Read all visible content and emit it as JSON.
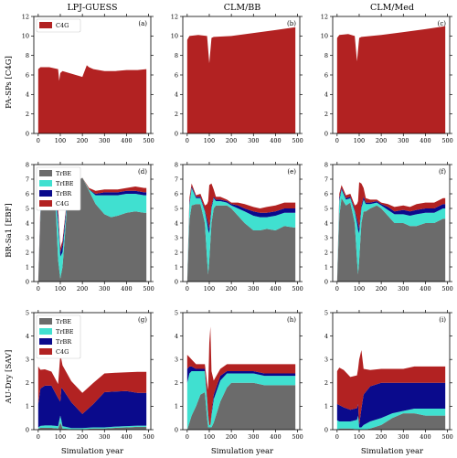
{
  "colors": {
    "TrBE": "#6b6b6b",
    "TrIBE": "#40e0d0",
    "TrBR": "#0a0a8c",
    "C4G": "#b22222"
  },
  "columns": [
    "LPJ-GUESS",
    "CLM/BB",
    "CLM/Med"
  ],
  "rows": [
    "PA-SPs [C4G]",
    "BR-Sa1 [EBF]",
    "AU-Dry [SAV]"
  ],
  "xlabel": "Simulation year",
  "chart_data": [
    {
      "type": "area",
      "panel": "(a)",
      "legend": [
        "C4G"
      ],
      "x": [
        0,
        10,
        50,
        90,
        95,
        100,
        110,
        200,
        220,
        230,
        250,
        300,
        350,
        400,
        450,
        490
      ],
      "series": [
        {
          "name": "C4G",
          "values": [
            6.6,
            6.8,
            6.8,
            6.6,
            5.4,
            6.2,
            6.4,
            5.8,
            7.0,
            6.8,
            6.6,
            6.4,
            6.4,
            6.5,
            6.5,
            6.6
          ]
        }
      ],
      "xlim": [
        -20,
        510
      ],
      "ylim": [
        0,
        12
      ],
      "xticks": [
        0,
        100,
        200,
        300,
        400,
        500
      ],
      "yticks": [
        0,
        2,
        4,
        6,
        8,
        10,
        12
      ]
    },
    {
      "type": "area",
      "panel": "(b)",
      "legend": [],
      "x": [
        0,
        10,
        50,
        90,
        100,
        110,
        120,
        200,
        300,
        400,
        490
      ],
      "series": [
        {
          "name": "C4G",
          "values": [
            9.6,
            10.0,
            10.1,
            10.0,
            7.2,
            9.8,
            9.9,
            10.0,
            10.3,
            10.6,
            10.9
          ]
        }
      ],
      "xlim": [
        -20,
        510
      ],
      "ylim": [
        0,
        12
      ],
      "xticks": [
        0,
        100,
        200,
        300,
        400,
        500
      ],
      "yticks": [
        0,
        2,
        4,
        6,
        8,
        10,
        12
      ]
    },
    {
      "type": "area",
      "panel": "(c)",
      "legend": [],
      "x": [
        0,
        10,
        50,
        80,
        90,
        100,
        110,
        200,
        300,
        400,
        490
      ],
      "series": [
        {
          "name": "C4G",
          "values": [
            9.8,
            10.1,
            10.2,
            10.0,
            7.4,
            9.8,
            9.9,
            10.1,
            10.4,
            10.7,
            11.0
          ]
        }
      ],
      "xlim": [
        -20,
        510
      ],
      "ylim": [
        0,
        12
      ],
      "xticks": [
        0,
        100,
        200,
        300,
        400,
        500
      ],
      "yticks": [
        0,
        2,
        4,
        6,
        8,
        10,
        12
      ]
    },
    {
      "type": "area",
      "panel": "(d)",
      "legend": [
        "TrBE",
        "TrIBE",
        "TrBR",
        "C4G"
      ],
      "x": [
        0,
        10,
        20,
        40,
        60,
        80,
        90,
        100,
        110,
        130,
        150,
        180,
        200,
        230,
        260,
        300,
        330,
        360,
        400,
        440,
        480,
        490
      ],
      "series": [
        {
          "name": "TrBE",
          "values": [
            0,
            4.5,
            6.2,
            6.4,
            6.1,
            4.8,
            1.5,
            0.2,
            1.0,
            5.0,
            6.5,
            6.9,
            7.1,
            6.2,
            5.3,
            4.6,
            4.4,
            4.5,
            4.7,
            4.8,
            4.7,
            4.7
          ]
        },
        {
          "name": "TrIBE",
          "values": [
            0,
            0.2,
            0.2,
            0.1,
            0.3,
            0.8,
            2.5,
            1.5,
            1.0,
            0.3,
            0.1,
            0,
            0,
            0.1,
            0.6,
            1.3,
            1.5,
            1.4,
            1.3,
            1.2,
            1.2,
            1.2
          ]
        },
        {
          "name": "TrBR",
          "values": [
            0,
            0.2,
            0.2,
            0.1,
            0.2,
            0.3,
            0.5,
            0.3,
            0.5,
            0.2,
            0.1,
            0,
            0,
            0,
            0.1,
            0.2,
            0.2,
            0.2,
            0.2,
            0.2,
            0.2,
            0.2
          ]
        },
        {
          "name": "C4G",
          "values": [
            0,
            0.3,
            0.1,
            0.1,
            0.2,
            0.3,
            0.5,
            0.3,
            0.3,
            0.1,
            0.1,
            0,
            0,
            0.1,
            0.2,
            0.2,
            0.2,
            0.2,
            0.2,
            0.3,
            0.3,
            0.3
          ]
        }
      ],
      "xlim": [
        -20,
        510
      ],
      "ylim": [
        0,
        8
      ],
      "xticks": [
        0,
        100,
        200,
        300,
        400,
        500
      ],
      "yticks": [
        0,
        1,
        2,
        3,
        4,
        5,
        6,
        7,
        8
      ]
    },
    {
      "type": "area",
      "panel": "(e)",
      "legend": [],
      "x": [
        0,
        10,
        20,
        40,
        60,
        80,
        90,
        95,
        100,
        110,
        120,
        130,
        150,
        180,
        200,
        230,
        260,
        300,
        330,
        360,
        400,
        440,
        480,
        490
      ],
      "series": [
        {
          "name": "TrBE",
          "values": [
            0,
            4.2,
            5.2,
            5.3,
            5.3,
            4.0,
            1.5,
            0.5,
            1.5,
            4.0,
            5.0,
            5.2,
            5.2,
            5.2,
            5.0,
            4.5,
            4.0,
            3.5,
            3.5,
            3.6,
            3.5,
            3.8,
            3.7,
            3.7
          ]
        },
        {
          "name": "TrIBE",
          "values": [
            0,
            1.0,
            1.2,
            0.4,
            0.4,
            0.8,
            2.5,
            3.0,
            1.8,
            1.0,
            0.7,
            0.3,
            0.3,
            0.2,
            0.2,
            0.5,
            0.8,
            1.0,
            0.9,
            0.8,
            1.0,
            0.9,
            1.0,
            1.0
          ]
        },
        {
          "name": "TrBR",
          "values": [
            0,
            0.2,
            0.1,
            0.1,
            0.1,
            0.1,
            0.3,
            0.5,
            0.3,
            0.2,
            0.1,
            0.1,
            0.1,
            0.1,
            0.1,
            0.2,
            0.2,
            0.3,
            0.3,
            0.3,
            0.3,
            0.3,
            0.3,
            0.3
          ]
        },
        {
          "name": "C4G",
          "values": [
            0,
            0.3,
            0.2,
            0.1,
            0.2,
            0.3,
            1.0,
            1.5,
            3.0,
            1.5,
            0.5,
            0.2,
            0.2,
            0.1,
            0.1,
            0.2,
            0.3,
            0.3,
            0.3,
            0.4,
            0.4,
            0.4,
            0.4,
            0.4
          ]
        }
      ],
      "xlim": [
        -20,
        510
      ],
      "ylim": [
        0,
        8
      ],
      "xticks": [
        0,
        100,
        200,
        300,
        400,
        500
      ],
      "yticks": [
        0,
        1,
        2,
        3,
        4,
        5,
        6,
        7,
        8
      ]
    },
    {
      "type": "area",
      "panel": "(f)",
      "legend": [],
      "x": [
        0,
        10,
        20,
        40,
        60,
        80,
        90,
        95,
        100,
        110,
        120,
        130,
        150,
        180,
        200,
        230,
        260,
        300,
        330,
        360,
        400,
        440,
        480,
        490
      ],
      "series": [
        {
          "name": "TrBE",
          "values": [
            0,
            4.5,
            5.7,
            5.2,
            5.4,
            4.0,
            1.5,
            0.5,
            1.5,
            4.0,
            4.8,
            4.8,
            5.0,
            5.2,
            5.0,
            4.5,
            4.0,
            4.0,
            3.8,
            3.8,
            4.0,
            4.0,
            4.3,
            4.3
          ]
        },
        {
          "name": "TrIBE",
          "values": [
            0,
            1.0,
            0.6,
            0.4,
            0.3,
            0.8,
            2.5,
            3.0,
            1.8,
            1.0,
            0.8,
            0.5,
            0.3,
            0.2,
            0.2,
            0.4,
            0.6,
            0.6,
            0.7,
            0.8,
            0.7,
            0.7,
            0.7,
            0.7
          ]
        },
        {
          "name": "TrBR",
          "values": [
            0,
            0.2,
            0.1,
            0.1,
            0.1,
            0.1,
            0.3,
            0.5,
            0.3,
            0.2,
            0.2,
            0.1,
            0.1,
            0.1,
            0.1,
            0.2,
            0.2,
            0.3,
            0.3,
            0.3,
            0.3,
            0.3,
            0.3,
            0.3
          ]
        },
        {
          "name": "C4G",
          "values": [
            0,
            0.3,
            0.2,
            0.2,
            0.2,
            0.3,
            1.0,
            1.5,
            3.2,
            1.5,
            0.6,
            0.3,
            0.2,
            0.1,
            0.1,
            0.2,
            0.3,
            0.3,
            0.3,
            0.4,
            0.4,
            0.4,
            0.4,
            0.4
          ]
        }
      ],
      "xlim": [
        -20,
        510
      ],
      "ylim": [
        0,
        8
      ],
      "xticks": [
        0,
        100,
        200,
        300,
        400,
        500
      ],
      "yticks": [
        0,
        1,
        2,
        3,
        4,
        5,
        6,
        7,
        8
      ]
    },
    {
      "type": "area",
      "panel": "(g)",
      "legend": [
        "TrBE",
        "TrIBE",
        "TrBR",
        "C4G"
      ],
      "x": [
        0,
        10,
        30,
        60,
        90,
        100,
        105,
        110,
        150,
        200,
        250,
        300,
        350,
        400,
        450,
        490
      ],
      "series": [
        {
          "name": "TrBE",
          "values": [
            0.05,
            0.08,
            0.08,
            0.08,
            0.05,
            0.3,
            0.2,
            0.05,
            0.02,
            0.02,
            0.05,
            0.05,
            0.08,
            0.1,
            0.12,
            0.12
          ]
        },
        {
          "name": "TrIBE",
          "values": [
            0.05,
            0.08,
            0.1,
            0.1,
            0.1,
            0.3,
            0.2,
            0.1,
            0.05,
            0.05,
            0.05,
            0.05,
            0.05,
            0.05,
            0.05,
            0.05
          ]
        },
        {
          "name": "TrBR",
          "values": [
            1.0,
            1.6,
            1.7,
            1.7,
            1.2,
            0.6,
            1.4,
            1.6,
            1.1,
            0.6,
            1.0,
            1.5,
            1.5,
            1.5,
            1.4,
            1.4
          ]
        },
        {
          "name": "C4G",
          "values": [
            1.6,
            0.8,
            0.7,
            0.6,
            0.6,
            2.0,
            1.2,
            1.0,
            0.9,
            0.9,
            0.9,
            0.8,
            0.8,
            0.8,
            0.9,
            0.9
          ]
        }
      ],
      "xlim": [
        -20,
        510
      ],
      "ylim": [
        0,
        5
      ],
      "xticks": [
        0,
        100,
        200,
        300,
        400,
        500
      ],
      "yticks": [
        0,
        1,
        2,
        3,
        4,
        5
      ]
    },
    {
      "type": "area",
      "panel": "(h)",
      "legend": [],
      "x": [
        0,
        10,
        20,
        40,
        60,
        80,
        90,
        95,
        100,
        105,
        110,
        120,
        150,
        180,
        200,
        230,
        260,
        300,
        350,
        400,
        450,
        490
      ],
      "series": [
        {
          "name": "TrBE",
          "values": [
            0,
            0.3,
            0.6,
            1.0,
            1.5,
            1.6,
            0.5,
            0.1,
            0.1,
            0.1,
            0.1,
            0.3,
            1.2,
            1.8,
            2.0,
            2.0,
            2.0,
            2.0,
            1.9,
            1.9,
            1.9,
            1.9
          ]
        },
        {
          "name": "TrIBE",
          "values": [
            2.0,
            2.1,
            1.9,
            1.5,
            1.0,
            0.9,
            0.8,
            0.5,
            0.1,
            0.1,
            0.5,
            1.0,
            0.9,
            0.6,
            0.4,
            0.4,
            0.4,
            0.4,
            0.4,
            0.4,
            0.4,
            0.4
          ]
        },
        {
          "name": "TrBR",
          "values": [
            0.6,
            0.3,
            0.2,
            0.1,
            0.1,
            0.1,
            0.1,
            0.1,
            0,
            0,
            0.1,
            0.2,
            0.2,
            0.1,
            0.1,
            0.1,
            0.1,
            0.1,
            0.1,
            0.1,
            0.1,
            0.1
          ]
        },
        {
          "name": "C4G",
          "values": [
            0.6,
            0.4,
            0.3,
            0.2,
            0.2,
            0.2,
            0.6,
            1.0,
            3.5,
            4.2,
            1.8,
            0.6,
            0.3,
            0.3,
            0.3,
            0.3,
            0.3,
            0.3,
            0.4,
            0.4,
            0.4,
            0.4
          ]
        }
      ],
      "xlim": [
        -20,
        510
      ],
      "ylim": [
        0,
        5
      ],
      "xticks": [
        0,
        100,
        200,
        300,
        400,
        500
      ],
      "yticks": [
        0,
        1,
        2,
        3,
        4,
        5
      ]
    },
    {
      "type": "area",
      "panel": "(i)",
      "legend": [],
      "x": [
        0,
        10,
        30,
        60,
        90,
        95,
        100,
        110,
        120,
        150,
        200,
        250,
        300,
        350,
        400,
        450,
        490
      ],
      "series": [
        {
          "name": "TrBE",
          "values": [
            0,
            0.05,
            0.05,
            0.05,
            0.02,
            0,
            0,
            0,
            0,
            0.05,
            0.2,
            0.5,
            0.7,
            0.7,
            0.6,
            0.6,
            0.6
          ]
        },
        {
          "name": "TrIBE",
          "values": [
            0.4,
            0.3,
            0.3,
            0.3,
            0.4,
            0.6,
            0.1,
            0.1,
            0.2,
            0.3,
            0.3,
            0.2,
            0.1,
            0.2,
            0.3,
            0.3,
            0.3
          ]
        },
        {
          "name": "TrBR",
          "values": [
            0.7,
            0.7,
            0.6,
            0.5,
            0.5,
            0.5,
            0.1,
            0.8,
            1.3,
            1.5,
            1.5,
            1.3,
            1.2,
            1.1,
            1.1,
            1.1,
            1.1
          ]
        },
        {
          "name": "C4G",
          "values": [
            1.4,
            1.6,
            1.6,
            1.4,
            1.4,
            1.5,
            2.8,
            2.5,
            1.1,
            0.7,
            0.6,
            0.6,
            0.6,
            0.7,
            0.7,
            0.7,
            0.7
          ]
        }
      ],
      "xlim": [
        -20,
        510
      ],
      "ylim": [
        0,
        5
      ],
      "xticks": [
        0,
        100,
        200,
        300,
        400,
        500
      ],
      "yticks": [
        0,
        1,
        2,
        3,
        4,
        5
      ]
    }
  ]
}
